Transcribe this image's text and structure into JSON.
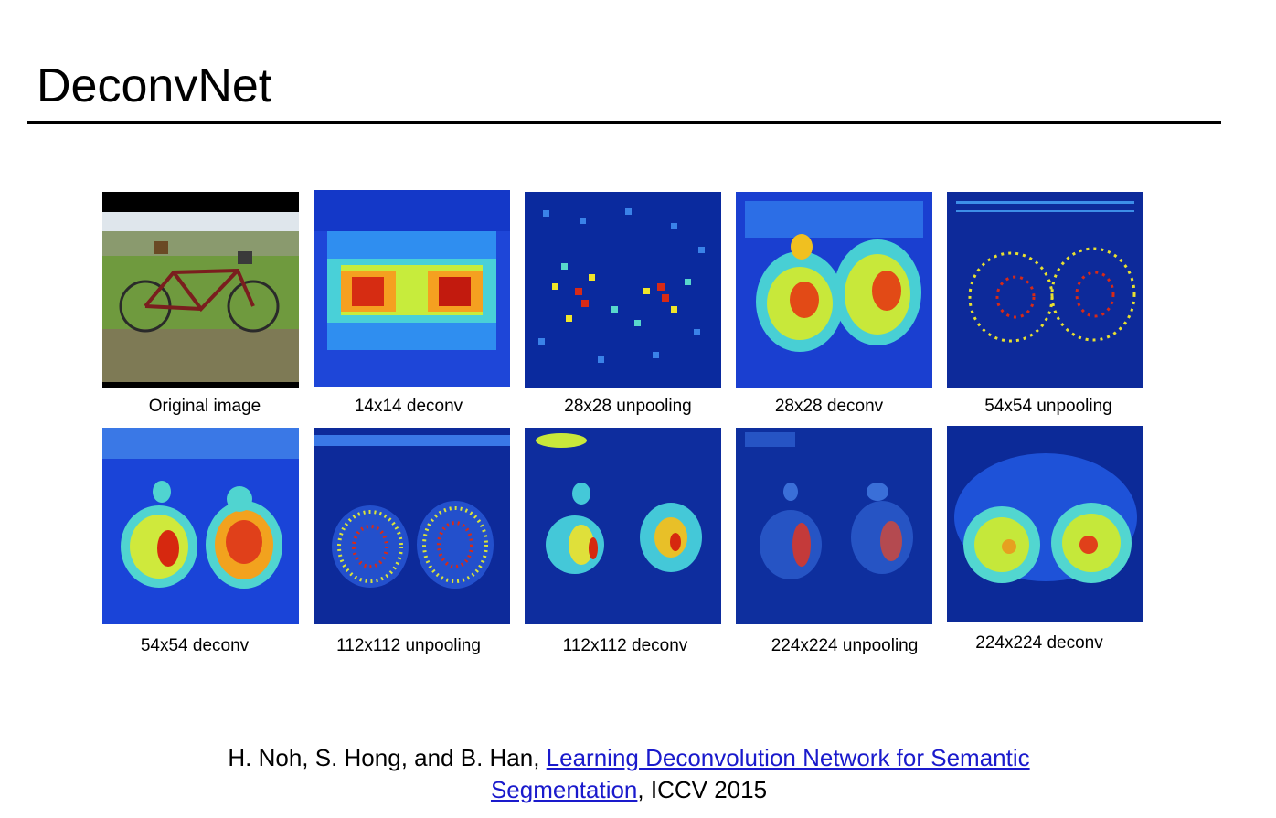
{
  "slide": {
    "title": "DeconvNet"
  },
  "panels": [
    {
      "caption": "Original image",
      "kind": "photo"
    },
    {
      "caption": "14x14 deconv",
      "kind": "heatmap"
    },
    {
      "caption": "28x28 unpooling",
      "kind": "heatmap"
    },
    {
      "caption": "28x28 deconv",
      "kind": "heatmap"
    },
    {
      "caption": "54x54 unpooling",
      "kind": "heatmap"
    },
    {
      "caption": "54x54 deconv",
      "kind": "heatmap"
    },
    {
      "caption": "112x112 unpooling",
      "kind": "heatmap"
    },
    {
      "caption": "112x112 deconv",
      "kind": "heatmap"
    },
    {
      "caption": "224x224 unpooling",
      "kind": "heatmap"
    },
    {
      "caption": "224x224 deconv",
      "kind": "heatmap"
    }
  ],
  "citation": {
    "authors": "H. Noh, S. Hong, and B. Han, ",
    "link_line1": "Learning Deconvolution Network for Semantic ",
    "link_line2": "Segmentation",
    "venue": ", ICCV 2015"
  },
  "colors": {
    "link": "#1a1acc",
    "heatmap_background": "#0a1f9a"
  }
}
